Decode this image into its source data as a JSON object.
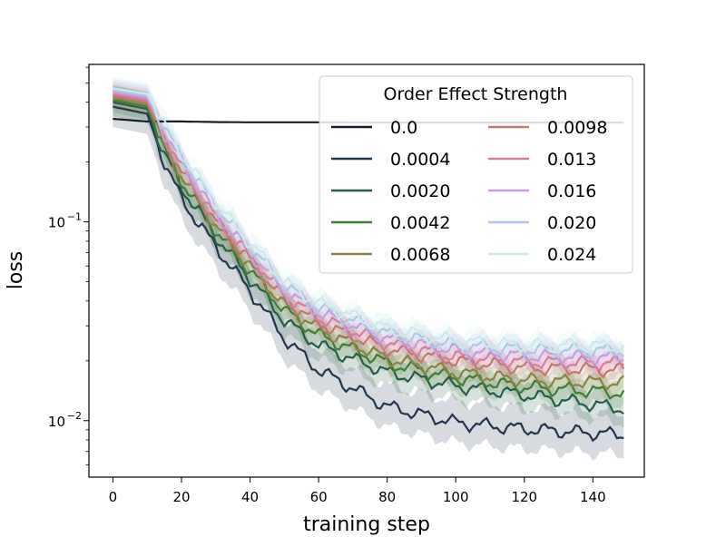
{
  "chart_data": {
    "type": "line",
    "xlabel": "training step",
    "ylabel": "loss",
    "yscale": "log",
    "xlim": [
      -7,
      155
    ],
    "ylim": [
      0.0052,
      0.62
    ],
    "xticks": [
      0,
      20,
      40,
      60,
      80,
      100,
      120,
      140
    ],
    "xtick_labels": [
      "0",
      "20",
      "40",
      "60",
      "80",
      "100",
      "120",
      "140"
    ],
    "yticks": [
      0.1,
      0.01
    ],
    "ytick_labels": [
      {
        "base": "10",
        "exp": "−1"
      },
      {
        "base": "10",
        "exp": "−2"
      }
    ],
    "legend": {
      "title": "Order Effect Strength",
      "position": "top-right",
      "columns": 2
    },
    "x": [
      0,
      10,
      15,
      20,
      30,
      40,
      50,
      60,
      80,
      100,
      120,
      149
    ],
    "series": [
      {
        "name": "0.0",
        "color": "#1c1c2e",
        "values": [
          0.33,
          0.32,
          0.32,
          0.32,
          0.318,
          0.317,
          0.317,
          0.317,
          0.316,
          0.316,
          0.316,
          0.316
        ],
        "band": 0.0
      },
      {
        "name": "0.0004",
        "color": "#22364f",
        "values": [
          0.38,
          0.35,
          0.2,
          0.13,
          0.075,
          0.045,
          0.026,
          0.018,
          0.0118,
          0.0098,
          0.0091,
          0.0085
        ],
        "band": 0.28
      },
      {
        "name": "0.0020",
        "color": "#245e48",
        "values": [
          0.4,
          0.37,
          0.22,
          0.15,
          0.085,
          0.052,
          0.032,
          0.024,
          0.0175,
          0.015,
          0.0135,
          0.0115
        ],
        "band": 0.2
      },
      {
        "name": "0.0042",
        "color": "#3f7d34",
        "values": [
          0.41,
          0.38,
          0.23,
          0.16,
          0.09,
          0.057,
          0.036,
          0.027,
          0.0195,
          0.0165,
          0.0148,
          0.0138
        ],
        "band": 0.18
      },
      {
        "name": "0.0068",
        "color": "#8a8442",
        "values": [
          0.42,
          0.39,
          0.24,
          0.17,
          0.095,
          0.06,
          0.038,
          0.029,
          0.0205,
          0.0175,
          0.016,
          0.0155
        ],
        "band": 0.16
      },
      {
        "name": "0.0098",
        "color": "#c2786b",
        "values": [
          0.43,
          0.4,
          0.26,
          0.18,
          0.1,
          0.064,
          0.041,
          0.031,
          0.023,
          0.02,
          0.0185,
          0.018
        ],
        "band": 0.14
      },
      {
        "name": "0.013",
        "color": "#d97aa0",
        "values": [
          0.44,
          0.41,
          0.27,
          0.19,
          0.105,
          0.067,
          0.043,
          0.033,
          0.0245,
          0.021,
          0.0198,
          0.0195
        ],
        "band": 0.14
      },
      {
        "name": "0.016",
        "color": "#c89be0",
        "values": [
          0.45,
          0.42,
          0.28,
          0.2,
          0.11,
          0.07,
          0.045,
          0.035,
          0.026,
          0.0225,
          0.0212,
          0.0208
        ],
        "band": 0.14
      },
      {
        "name": "0.020",
        "color": "#aec6e8",
        "values": [
          0.46,
          0.43,
          0.3,
          0.21,
          0.12,
          0.075,
          0.048,
          0.037,
          0.0275,
          0.024,
          0.0228,
          0.0225
        ],
        "band": 0.14
      },
      {
        "name": "0.024",
        "color": "#c9ece8",
        "values": [
          0.47,
          0.44,
          0.31,
          0.22,
          0.125,
          0.078,
          0.05,
          0.039,
          0.029,
          0.0252,
          0.024,
          0.0238
        ],
        "band": 0.14
      }
    ]
  }
}
